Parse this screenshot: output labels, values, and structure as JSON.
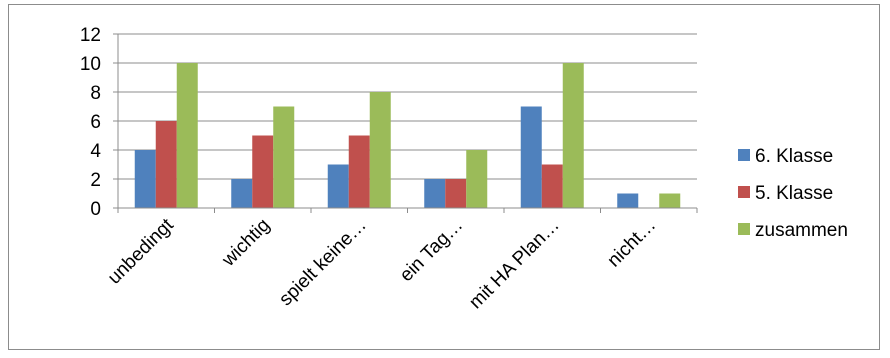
{
  "chart_data": {
    "type": "bar",
    "title": "",
    "xlabel": "",
    "ylabel": "",
    "categories": [
      "unbedingt",
      "wichtig",
      "spielt keine…",
      "ein Tag…",
      "mit HA Plan…",
      "nicht…"
    ],
    "series": [
      {
        "name": "6. Klasse",
        "color": "#4F81BD",
        "values": [
          4,
          2,
          3,
          2,
          7,
          1
        ]
      },
      {
        "name": "5. Klasse",
        "color": "#C0504D",
        "values": [
          6,
          5,
          5,
          2,
          3,
          0
        ]
      },
      {
        "name": "zusammen",
        "color": "#9BBB59",
        "values": [
          10,
          7,
          8,
          4,
          10,
          1
        ]
      }
    ],
    "ylim": [
      0,
      12
    ],
    "yticks": [
      0,
      2,
      4,
      6,
      8,
      10,
      12
    ],
    "grid": true,
    "legend": "right"
  }
}
